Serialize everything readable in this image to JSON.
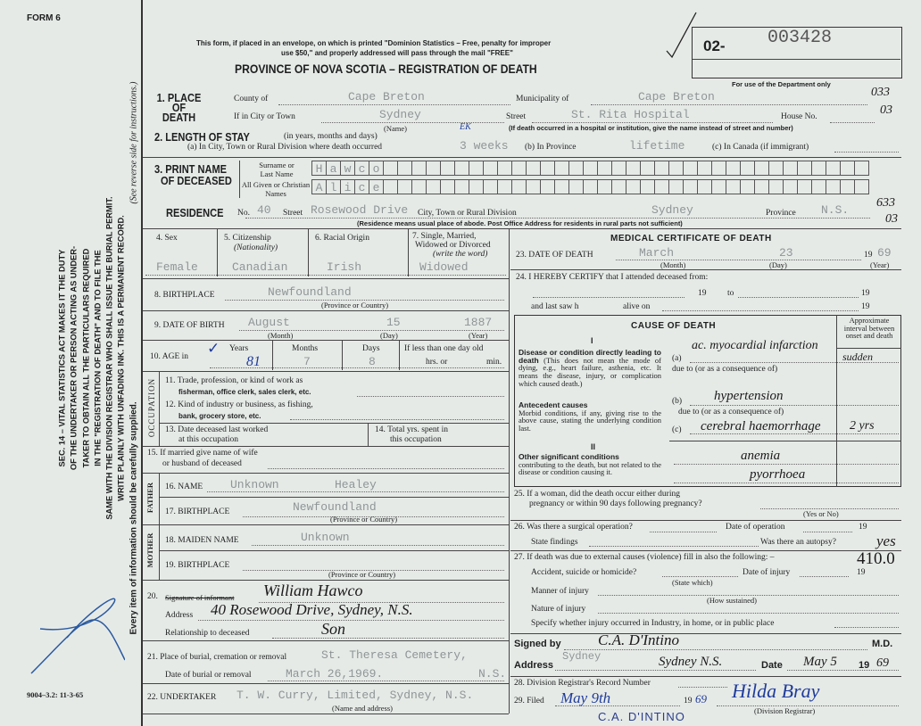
{
  "form_no": "FORM 6",
  "print_code": "9004–3.2: 11-3-65",
  "margin_notice": [
    "SEC. 14 – VITAL STATISTICS ACT MAKES IT THE DUTY",
    "OF THE UNDERTAKER OR PERSON ACTING AS UNDER-",
    "TAKER TO OBTAIN ALL THE PARTICULARS REQUIRED",
    "IN THE \"REGISTRATION OF DEATH\" AND TO FILE THE",
    "SAME WITH THE DIVISION REGISTRAR WHO SHALL ISSUE THE BURIAL PERMIT.",
    "WRITE PLAINLY WITH UNFADING INK. THIS IS A PERMANENT RECORD."
  ],
  "margin_footer": "Every item of information should be carefully supplied.",
  "margin_see": "(See reverse side for instructions.)",
  "header": {
    "mail_line1": "This form, if placed in an envelope, on which is printed \"Dominion Statistics – Free, penalty for improper",
    "mail_line2": "use $50,\" and properly addressed will pass through the mail \"FREE\"",
    "title": "PROVINCE OF NOVA SCOTIA – REGISTRATION OF DEATH",
    "reg_prefix": "02-",
    "reg_number": "003428",
    "dept_only": "For use of the Department only"
  },
  "margin_codes": [
    "033",
    "03",
    "633",
    "03"
  ],
  "s1": {
    "label": "1. PLACE OF DEATH",
    "county_label": "County of",
    "county": "Cape Breton",
    "municipality_label": "Municipality of",
    "municipality": "Cape Breton",
    "city_label": "If in City or Town",
    "city": "Sydney",
    "name_note": "(Name)",
    "street_label": "Street",
    "street": "St. Rita Hospital",
    "house_label": "House No.",
    "note": "(If death occurred in a hospital or institution, give the name instead of street and number)"
  },
  "s2": {
    "label": "2. LENGTH OF STAY",
    "sub": "(in years, months and days)",
    "a_label": "(a) In City, Town or Rural Division where death occurred",
    "a": "3 weeks",
    "b_label": "(b) In Province",
    "b": "lifetime",
    "c_label": "(c) In Canada (if immigrant)",
    "mark": "EK"
  },
  "s3": {
    "label1": "3. PRINT NAME",
    "label2": "OF DECEASED",
    "surname_label": "Surname or Last Name",
    "surname": [
      "H",
      "a",
      "w",
      "c",
      "o"
    ],
    "given_label": "All Given or Christian Names",
    "given": [
      "A",
      "l",
      "i",
      "c",
      "e"
    ]
  },
  "residence": {
    "label": "RESIDENCE",
    "no_label": "No.",
    "no": "40",
    "street_label": "Street",
    "street": "Rosewood Drive",
    "city_label": "City, Town or Rural Division",
    "city": "Sydney",
    "province_label": "Province",
    "province": "N.S.",
    "note": "(Residence means usual place of abode. Post Office Address for residents in rural parts not sufficient)"
  },
  "s4": {
    "label": "4. Sex",
    "value": "Female"
  },
  "s5": {
    "label": "5. Citizenship",
    "sub": "(Nationality)",
    "value": "Canadian"
  },
  "s6": {
    "label": "6. Racial Origin",
    "value": "Irish"
  },
  "s7": {
    "label1": "7. Single, Married,",
    "label2": "Widowed or Divorced",
    "sub": "(write the word)",
    "value": "Widowed"
  },
  "s8": {
    "label": "8. BIRTHPLACE",
    "value": "Newfoundland",
    "note": "(Province or Country)"
  },
  "s9": {
    "label": "9. DATE OF BIRTH",
    "month": "August",
    "day": "15",
    "year": "1887",
    "month_note": "(Month)",
    "day_note": "(Day)",
    "year_note": "(Year)"
  },
  "s10": {
    "label": "10. AGE in",
    "years_label": "Years",
    "years": "81",
    "months_label": "Months",
    "months": "7",
    "days_label": "Days",
    "days": "8",
    "less_label": "If less than one day old",
    "hrs": "hrs. or",
    "min": "min."
  },
  "occupation": {
    "label": "OCCUPATION",
    "s11a": "11. Trade, profession, or kind of work as",
    "s11b": "fisherman, office clerk, sales clerk, etc.",
    "s12a": "12. Kind of industry or business, as fishing,",
    "s12b": "bank, grocery store, etc.",
    "s13a": "13. Date deceased last worked",
    "s13b": "at this occupation",
    "s14a": "14. Total yrs. spent in",
    "s14b": "this occupation"
  },
  "s15": {
    "a": "15. If married give name of wife",
    "b": "or husband of deceased"
  },
  "father": {
    "label": "FATHER",
    "name_label": "16. NAME",
    "first": "Unknown",
    "last": "Healey",
    "bp_label": "17. BIRTHPLACE",
    "bp": "Newfoundland",
    "note": "(Province or Country)"
  },
  "mother": {
    "label": "MOTHER",
    "maiden_label": "18. MAIDEN NAME",
    "maiden": "Unknown",
    "bp_label": "19. BIRTHPLACE",
    "note": "(Province or Country)"
  },
  "s20": {
    "label": "20.",
    "informant_label": "Signature of informant",
    "informant": "William Hawco",
    "address_label": "Address",
    "address": "40 Rosewood Drive, Sydney, N.S.",
    "rel_label": "Relationship to deceased",
    "rel": "Son"
  },
  "s21": {
    "place_label": "21. Place of burial, cremation or removal",
    "place": "St. Theresa Cemetery,",
    "date_label": "Date of burial or removal",
    "date": "March 26,1969.",
    "prov": "N.S."
  },
  "s22": {
    "label": "22. UNDERTAKER",
    "value": "T. W. Curry, Limited, Sydney, N.S.",
    "note": "(Name and address)"
  },
  "medical": {
    "title": "MEDICAL CERTIFICATE OF DEATH",
    "s23_label": "23. DATE OF DEATH",
    "month": "March",
    "day": "23",
    "year_prefix": "19",
    "year": "69",
    "month_note": "(Month)",
    "day_note": "(Day)",
    "year_note": "(Year)",
    "s24": "24. I HEREBY CERTIFY that I attended deceased from:",
    "s24_19": "19",
    "s24_to": "to",
    "last_saw": "and last saw h",
    "alive_on": "alive on"
  },
  "cause": {
    "title": "CAUSE OF DEATH",
    "interval_label": "Approximate interval between onset and death",
    "roman1": "I",
    "roman2": "II",
    "direct_title": "Disease or condition directly leading to death",
    "direct_desc": "(This does not mean the mode of dying, e.g., heart failure, asthenia, etc. It means the disease, injury, or complication which caused death.)",
    "ante_title": "Antecedent causes",
    "ante_desc": "Morbid conditions, if any, giving rise to the above cause, stating the underlying condition last.",
    "other_title": "Other significant conditions",
    "other_desc": "contributing to the death, but not related to the disease or condition causing it.",
    "a": "(a)",
    "b": "(b)",
    "c": "(c)",
    "due_to": "due to (or as a consequence of)",
    "a_value": "ac. myocardial infarction",
    "b_value": "hypertension",
    "c_value": "cerebral haemorrhage",
    "a_interval": "sudden",
    "c_interval": "2 yrs",
    "other_value1": "anemia",
    "other_value2": "pyorrhoea"
  },
  "s25": {
    "a": "25. If a woman, did the death occur either during",
    "b": "pregnancy or within 90 days following pregnancy?",
    "note": "(Yes or No)"
  },
  "s26": {
    "a": "26. Was there a surgical operation?",
    "date": "Date of operation",
    "nineteen": "19",
    "findings": "State findings",
    "autopsy": "Was there an autopsy?",
    "autopsy_value": "yes"
  },
  "s27": {
    "a": "27. If death was due to external causes (violence) fill in also the following: –",
    "accident": "Accident, suicide or homicide?",
    "state_which": "(State which)",
    "date": "Date of injury",
    "nineteen": "19",
    "code": "410.0",
    "manner": "Manner of injury",
    "how": "(How sustained)",
    "nature": "Nature of injury",
    "specify": "Specify whether injury occurred in Industry, in home, or in public place"
  },
  "signed": {
    "label": "Signed by",
    "value": "C.A. D'Intino",
    "md": "M.D.",
    "address_label": "Address",
    "address_typed": "Sydney",
    "address": "Sydney N.S.",
    "date_label": "Date",
    "date": "May 5",
    "year_prefix": "19",
    "year": "69"
  },
  "s28": {
    "label": "28. Division Registrar's Record Number"
  },
  "s29": {
    "label": "29. Filed",
    "date": "May 9th",
    "year_prefix": "19",
    "year": "69",
    "registrar": "Hilda Bray",
    "registrar_note": "(Division Registrar)",
    "stamp": "C.A. D'INTINO"
  }
}
